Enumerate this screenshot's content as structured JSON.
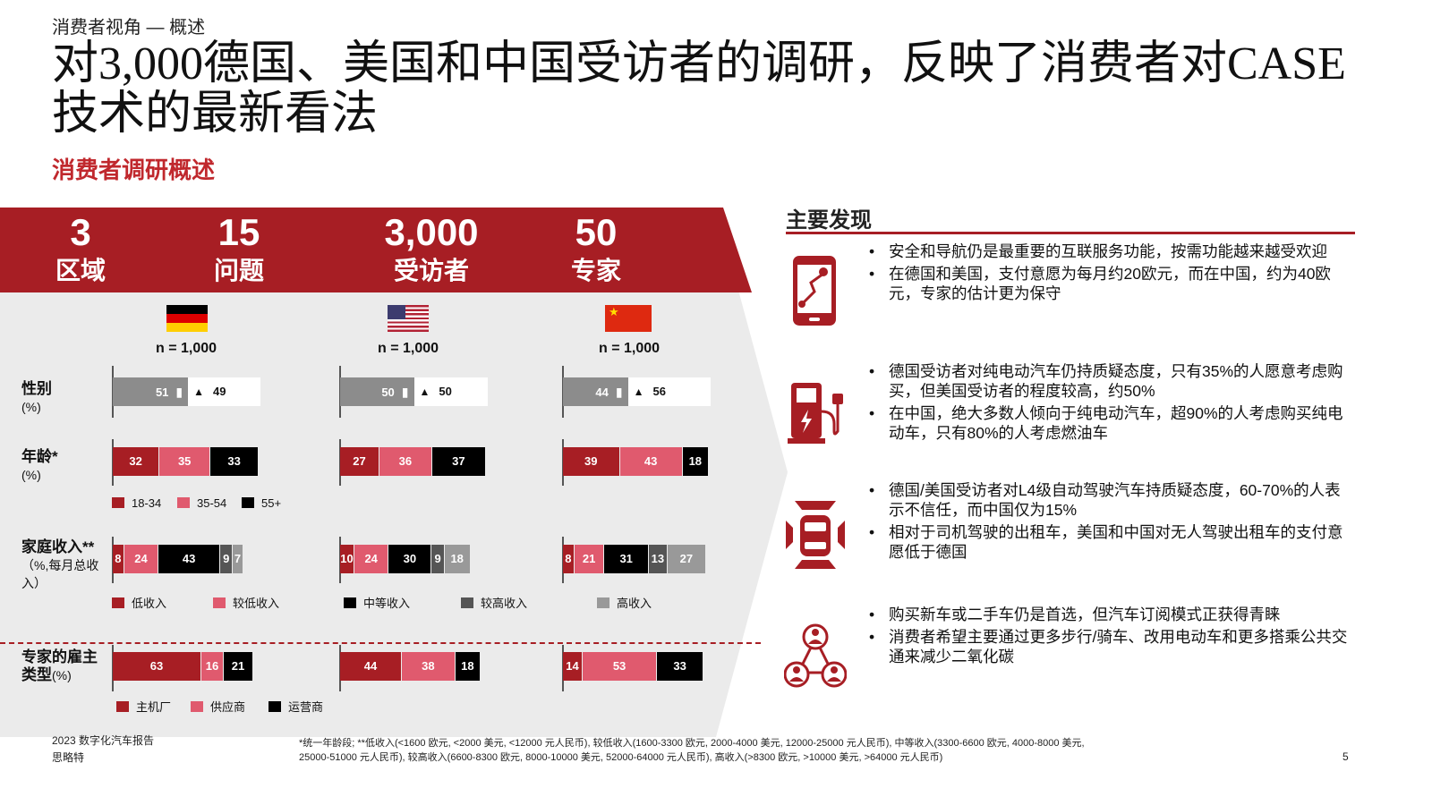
{
  "header": {
    "breadcrumb": "消费者视角 — 概述",
    "title": "对3,000德国、美国和中国受访者的调研，反映了消费者对CASE技术的最新看法",
    "subtitle": "消费者调研概述"
  },
  "stats": [
    {
      "number": "3",
      "label": "区域"
    },
    {
      "number": "15",
      "label": "问题"
    },
    {
      "number": "3,000",
      "label": "受访者"
    },
    {
      "number": "50",
      "label": "专家"
    }
  ],
  "countries": [
    {
      "flag": "germany-flag",
      "n": "n = 1,000"
    },
    {
      "flag": "usa-flag",
      "n": "n = 1,000"
    },
    {
      "flag": "china-flag",
      "n": "n = 1,000"
    }
  ],
  "rows": {
    "gender": {
      "label": "性别",
      "unit": "(%)"
    },
    "age": {
      "label": "年龄*",
      "unit": "(%)"
    },
    "income": {
      "label": "家庭收入**",
      "unit": "（%,每月总收入）"
    },
    "employer": {
      "label": "专家的雇主类型",
      "unit": "(%)"
    }
  },
  "colors": {
    "brand": "#a71e24",
    "c1": "#a71e24",
    "c2": "#e05a6e",
    "c3": "#000000",
    "c4": "#555555",
    "c5": "#999999",
    "male": "#8c8c8c"
  },
  "gender_data": [
    {
      "male": 51,
      "female": 49
    },
    {
      "male": 50,
      "female": 50
    },
    {
      "male": 44,
      "female": 56
    }
  ],
  "age_data": [
    [
      32,
      35,
      33
    ],
    [
      27,
      36,
      37
    ],
    [
      39,
      43,
      18
    ]
  ],
  "income_data": [
    [
      8,
      24,
      43,
      9,
      7
    ],
    [
      10,
      24,
      30,
      9,
      18
    ],
    [
      8,
      21,
      31,
      13,
      27
    ]
  ],
  "employer_data": [
    [
      63,
      16,
      21
    ],
    [
      44,
      38,
      18
    ],
    [
      14,
      53,
      33
    ]
  ],
  "legends": {
    "age": [
      "18-34",
      "35-54",
      "55+"
    ],
    "income": [
      "低收入",
      "较低收入",
      "中等收入",
      "较高收入",
      "高收入"
    ],
    "employer": [
      "主机厂",
      "供应商",
      "运营商"
    ]
  },
  "findings": {
    "title": "主要发现",
    "groups": [
      {
        "icon": "smartphone-map-icon",
        "bullets": [
          "安全和导航仍是最重要的互联服务功能，按需功能越来越受欢迎",
          "在德国和美国，支付意愿为每月约20欧元，而在中国，约为40欧元，专家的估计更为保守"
        ]
      },
      {
        "icon": "ev-charger-icon",
        "bullets": [
          "德国受访者对纯电动汽车仍持质疑态度，只有35%的人愿意考虑购买，但美国受访者的程度较高，约50%",
          "在中国，绝大多数人倾向于纯电动汽车，超90%的人考虑购买纯电动车，只有80%的人考虑燃油车"
        ]
      },
      {
        "icon": "autonomous-car-icon",
        "bullets": [
          "德国/美国受访者对L4级自动驾驶汽车持质疑态度，60-70%的人表示不信任，而中国仅为15%",
          "相对于司机驾驶的出租车，美国和中国对无人驾驶出租车的支付意愿低于德国"
        ]
      },
      {
        "icon": "people-network-icon",
        "bullets": [
          "购买新车或二手车仍是首选，但汽车订阅模式正获得青睐",
          "消费者希望主要通过更多步行/骑车、改用电动车和更多搭乘公共交通来减少二氧化碳"
        ]
      }
    ]
  },
  "footer": {
    "report": "2023 数字化汽车报告",
    "company": "思略特",
    "footnote": "*统一年龄段; **低收入(<1600 欧元, <2000 美元, <12000 元人民币), 较低收入(1600-3300 欧元, 2000-4000 美元, 12000-25000 元人民币), 中等收入(3300-6600 欧元, 4000-8000 美元, 25000-51000 元人民币), 较高收入(6600-8300 欧元, 8000-10000 美元, 52000-64000 元人民币), 高收入(>8300 欧元, >10000 美元, >64000 元人民币)",
    "page": "5"
  }
}
